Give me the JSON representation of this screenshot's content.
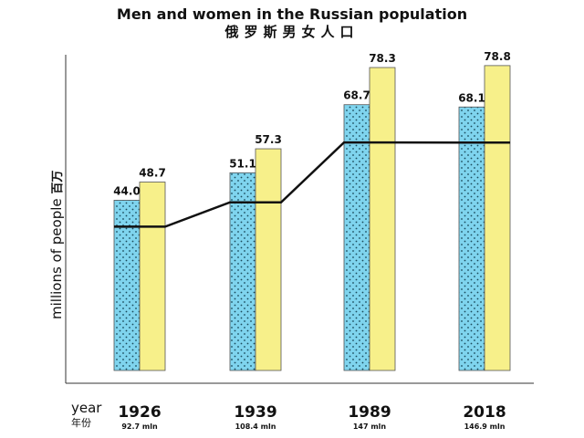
{
  "title": "Men and women in the Russian population",
  "subtitle": "俄罗斯男女人口",
  "ylabel": "millions of people",
  "ylabel_zh": "百万",
  "xlabel": "year",
  "xlabel_zh": "年份",
  "colors": {
    "men": "#7fd4ee",
    "women": "#f7f08a",
    "line": "#111111"
  },
  "chart_data": {
    "type": "bar",
    "categories": [
      "1926",
      "1939",
      "1989",
      "2018"
    ],
    "category_sublabels": [
      "92.7 mln",
      "108.4 mln",
      "147 mln",
      "146.9 mln"
    ],
    "series": [
      {
        "values": [
          44.0,
          51.1,
          68.7,
          68.1
        ],
        "labels": [
          "44.0",
          "51.1",
          "68.7",
          "68.1"
        ]
      },
      {
        "values": [
          48.7,
          57.3,
          78.3,
          78.8
        ],
        "labels": [
          "48.7",
          "57.3",
          "78.3",
          "78.8"
        ]
      }
    ],
    "line_values": [
      92.7,
      108.4,
      147,
      146.9
    ]
  }
}
